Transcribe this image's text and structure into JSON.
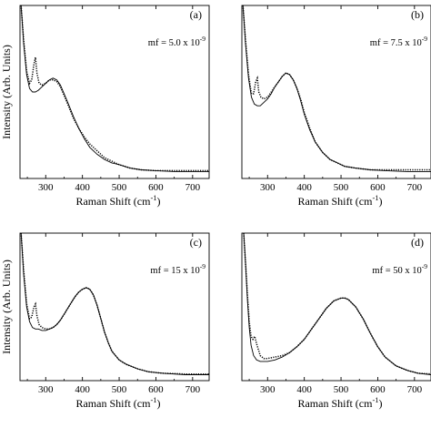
{
  "chart_data": [
    {
      "type": "line",
      "panel_label": "(a)",
      "annotation": "mf = 5.0 x 10",
      "annotation_exp": "-9",
      "xlabel": "Raman Shift (cm",
      "xlabel_exp": "-1",
      "xlabel_close": ")",
      "ylabel": "Intensity (Arb. Units)",
      "xlim": [
        230,
        745
      ],
      "ylim": [
        0,
        1
      ],
      "xticks": [
        300,
        400,
        500,
        600,
        700
      ],
      "xtick_labels": [
        "300",
        "400",
        "500",
        "600",
        "700"
      ],
      "series": [
        {
          "style": "dotted",
          "x": [
            233,
            240,
            248,
            256,
            262,
            268,
            272,
            276,
            282,
            290,
            300,
            310,
            320,
            330,
            340,
            350,
            360,
            375,
            390,
            405,
            420,
            440,
            460,
            480,
            500,
            530,
            560,
            600,
            650,
            700,
            745
          ],
          "y": [
            1.0,
            0.8,
            0.62,
            0.55,
            0.57,
            0.66,
            0.7,
            0.61,
            0.55,
            0.54,
            0.55,
            0.57,
            0.57,
            0.56,
            0.53,
            0.48,
            0.43,
            0.35,
            0.29,
            0.24,
            0.2,
            0.16,
            0.12,
            0.1,
            0.08,
            0.06,
            0.05,
            0.045,
            0.045,
            0.045,
            0.045
          ]
        },
        {
          "style": "solid",
          "x": [
            233,
            240,
            248,
            256,
            264,
            272,
            280,
            290,
            300,
            310,
            320,
            330,
            340,
            350,
            360,
            375,
            390,
            405,
            420,
            440,
            460,
            480,
            500,
            530,
            560,
            600,
            650,
            700,
            745
          ],
          "y": [
            1.0,
            0.78,
            0.6,
            0.52,
            0.5,
            0.5,
            0.51,
            0.53,
            0.55,
            0.57,
            0.58,
            0.57,
            0.54,
            0.49,
            0.44,
            0.36,
            0.29,
            0.23,
            0.18,
            0.14,
            0.11,
            0.09,
            0.08,
            0.06,
            0.05,
            0.045,
            0.04,
            0.04,
            0.04
          ]
        }
      ]
    },
    {
      "type": "line",
      "panel_label": "(b)",
      "annotation": "mf = 7.5 x 10",
      "annotation_exp": "-9",
      "xlabel": "Raman Shift (cm",
      "xlabel_exp": "-1",
      "xlabel_close": ")",
      "ylabel": "",
      "xlim": [
        230,
        745
      ],
      "ylim": [
        0,
        1
      ],
      "xticks": [
        300,
        400,
        500,
        600,
        700
      ],
      "xtick_labels": [
        "300",
        "400",
        "500",
        "600",
        "700"
      ],
      "series": [
        {
          "style": "dotted",
          "x": [
            233,
            240,
            248,
            256,
            262,
            268,
            272,
            276,
            282,
            290,
            300,
            310,
            320,
            330,
            340,
            350,
            360,
            370,
            380,
            390,
            400,
            415,
            430,
            450,
            470,
            490,
            510,
            540,
            580,
            620,
            680,
            745
          ],
          "y": [
            1.0,
            0.8,
            0.6,
            0.49,
            0.49,
            0.56,
            0.58,
            0.5,
            0.47,
            0.46,
            0.47,
            0.5,
            0.53,
            0.56,
            0.59,
            0.61,
            0.6,
            0.57,
            0.52,
            0.46,
            0.38,
            0.29,
            0.21,
            0.15,
            0.11,
            0.09,
            0.07,
            0.06,
            0.05,
            0.05,
            0.05,
            0.05
          ]
        },
        {
          "style": "solid",
          "x": [
            233,
            240,
            248,
            256,
            264,
            272,
            280,
            290,
            300,
            310,
            320,
            330,
            340,
            350,
            360,
            370,
            380,
            390,
            400,
            415,
            430,
            450,
            470,
            490,
            510,
            540,
            580,
            620,
            680,
            745
          ],
          "y": [
            1.0,
            0.78,
            0.58,
            0.47,
            0.43,
            0.42,
            0.42,
            0.44,
            0.46,
            0.49,
            0.53,
            0.56,
            0.59,
            0.61,
            0.6,
            0.57,
            0.52,
            0.45,
            0.37,
            0.28,
            0.21,
            0.15,
            0.11,
            0.09,
            0.07,
            0.06,
            0.05,
            0.045,
            0.04,
            0.04
          ]
        }
      ]
    },
    {
      "type": "line",
      "panel_label": "(c)",
      "annotation": "mf = 15 x 10",
      "annotation_exp": "-9",
      "xlabel": "Raman Shift (cm",
      "xlabel_exp": "-1",
      "xlabel_close": ")",
      "ylabel": "Intensity (Arb. Units)",
      "xlim": [
        230,
        745
      ],
      "ylim": [
        0,
        1
      ],
      "xticks": [
        300,
        400,
        500,
        600,
        700
      ],
      "xtick_labels": [
        "300",
        "400",
        "500",
        "600",
        "700"
      ],
      "series": [
        {
          "style": "dotted",
          "x": [
            233,
            240,
            248,
            256,
            262,
            268,
            272,
            276,
            282,
            290,
            300,
            310,
            320,
            330,
            340,
            350,
            360,
            370,
            380,
            390,
            400,
            410,
            420,
            430,
            440,
            450,
            460,
            470,
            480,
            500,
            520,
            550,
            580,
            620,
            680,
            745
          ],
          "y": [
            1.0,
            0.75,
            0.52,
            0.42,
            0.43,
            0.5,
            0.52,
            0.44,
            0.38,
            0.36,
            0.35,
            0.35,
            0.36,
            0.38,
            0.41,
            0.45,
            0.49,
            0.53,
            0.57,
            0.6,
            0.62,
            0.63,
            0.62,
            0.58,
            0.51,
            0.42,
            0.33,
            0.26,
            0.2,
            0.14,
            0.11,
            0.08,
            0.06,
            0.05,
            0.045,
            0.045
          ]
        },
        {
          "style": "solid",
          "x": [
            233,
            240,
            248,
            256,
            264,
            272,
            280,
            290,
            300,
            310,
            320,
            330,
            340,
            350,
            360,
            370,
            380,
            390,
            400,
            410,
            420,
            430,
            440,
            450,
            460,
            470,
            480,
            500,
            520,
            550,
            580,
            620,
            680,
            745
          ],
          "y": [
            1.0,
            0.72,
            0.5,
            0.4,
            0.36,
            0.35,
            0.35,
            0.34,
            0.34,
            0.35,
            0.36,
            0.38,
            0.41,
            0.45,
            0.49,
            0.53,
            0.57,
            0.6,
            0.62,
            0.63,
            0.62,
            0.58,
            0.51,
            0.42,
            0.33,
            0.26,
            0.2,
            0.14,
            0.11,
            0.08,
            0.06,
            0.05,
            0.04,
            0.04
          ]
        }
      ]
    },
    {
      "type": "line",
      "panel_label": "(d)",
      "annotation": "mf = 50 x 10",
      "annotation_exp": "-9",
      "xlabel": "Raman Shift (cm",
      "xlabel_exp": "-1",
      "xlabel_close": ")",
      "ylabel": "",
      "xlim": [
        230,
        745
      ],
      "ylim": [
        0,
        1
      ],
      "xticks": [
        300,
        400,
        500,
        600,
        700
      ],
      "xtick_labels": [
        "300",
        "400",
        "500",
        "600",
        "700"
      ],
      "series": [
        {
          "style": "dotted",
          "x": [
            235,
            240,
            245,
            250,
            255,
            260,
            265,
            270,
            280,
            290,
            300,
            320,
            340,
            360,
            380,
            400,
            420,
            440,
            460,
            480,
            500,
            510,
            520,
            540,
            560,
            580,
            600,
            620,
            650,
            680,
            710,
            745
          ],
          "y": [
            1.0,
            0.8,
            0.58,
            0.4,
            0.3,
            0.28,
            0.3,
            0.25,
            0.17,
            0.15,
            0.15,
            0.16,
            0.17,
            0.19,
            0.23,
            0.28,
            0.35,
            0.42,
            0.49,
            0.54,
            0.56,
            0.56,
            0.55,
            0.5,
            0.42,
            0.32,
            0.23,
            0.16,
            0.1,
            0.07,
            0.05,
            0.045
          ]
        },
        {
          "style": "solid",
          "x": [
            235,
            240,
            245,
            250,
            255,
            262,
            270,
            280,
            290,
            300,
            320,
            340,
            360,
            380,
            400,
            420,
            440,
            460,
            480,
            500,
            510,
            520,
            540,
            560,
            580,
            600,
            620,
            650,
            680,
            710,
            745
          ],
          "y": [
            1.0,
            0.8,
            0.55,
            0.36,
            0.24,
            0.17,
            0.14,
            0.13,
            0.13,
            0.13,
            0.14,
            0.16,
            0.19,
            0.23,
            0.28,
            0.35,
            0.42,
            0.49,
            0.54,
            0.56,
            0.56,
            0.55,
            0.5,
            0.42,
            0.32,
            0.23,
            0.16,
            0.1,
            0.07,
            0.05,
            0.04
          ]
        }
      ]
    }
  ]
}
